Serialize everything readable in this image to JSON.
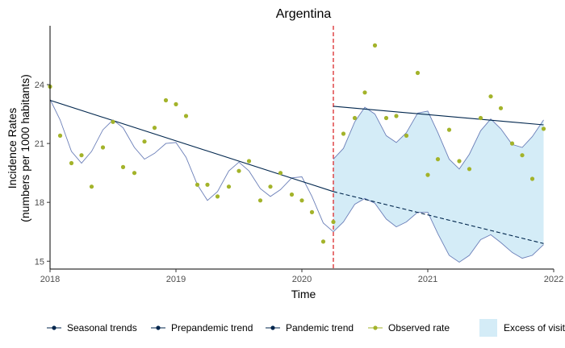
{
  "chart_data": {
    "type": "line",
    "title": "Argentina",
    "xlabel": "Time",
    "ylabel": [
      "Incidence Rates",
      "(numbers per 1000 habitants)"
    ],
    "xlim": [
      2018,
      2022
    ],
    "ylim": [
      14.6,
      27.0
    ],
    "x_ticks": [
      2018,
      2019,
      2020,
      2021,
      2022
    ],
    "x_tick_labels": [
      "2018",
      "2019",
      "2020",
      "2021",
      "2022"
    ],
    "y_ticks": [
      15,
      18,
      21,
      24
    ],
    "y_tick_labels": [
      "15",
      "18",
      "21",
      "24"
    ],
    "pandemic_start": 2020.25,
    "grid": false,
    "legend_position": "bottom",
    "colors": {
      "trend": "#00264d",
      "seasonal": "#6b7fb8",
      "observed": "#a3b32a",
      "excess_fill": "#d4ecf7",
      "vline": "#d7191c"
    },
    "prepandemic_trend": {
      "solid": {
        "x": [
          2018.0,
          2020.25
        ],
        "y": [
          23.2,
          18.55
        ]
      },
      "dashed": {
        "x": [
          2020.25,
          2021.92
        ],
        "y": [
          18.55,
          15.9
        ]
      }
    },
    "pandemic_trend": {
      "x": [
        2020.25,
        2021.92
      ],
      "y": [
        22.9,
        21.95
      ]
    },
    "seasonal_prepandemic": {
      "x": [
        2018.0,
        2018.08,
        2018.17,
        2018.25,
        2018.33,
        2018.42,
        2018.5,
        2018.58,
        2018.67,
        2018.75,
        2018.83,
        2018.92,
        2019.0,
        2019.08,
        2019.17,
        2019.25,
        2019.33,
        2019.42,
        2019.5,
        2019.58,
        2019.67,
        2019.75,
        2019.83,
        2019.92,
        2020.0,
        2020.08,
        2020.17,
        2020.25
      ],
      "y": [
        23.25,
        22.2,
        20.6,
        20.0,
        20.6,
        21.7,
        22.2,
        21.8,
        20.8,
        20.2,
        20.5,
        21.0,
        21.05,
        20.3,
        18.9,
        18.1,
        18.55,
        19.6,
        20.05,
        19.6,
        18.7,
        18.3,
        18.65,
        19.25,
        19.3,
        18.3,
        16.95,
        16.5
      ]
    },
    "seasonal_pandemic": {
      "x": [
        2020.25,
        2020.33,
        2020.42,
        2020.5,
        2020.58,
        2020.67,
        2020.75,
        2020.83,
        2020.92,
        2021.0,
        2021.08,
        2021.17,
        2021.25,
        2021.33,
        2021.42,
        2021.5,
        2021.58,
        2021.67,
        2021.75,
        2021.83,
        2021.92
      ],
      "y": [
        20.2,
        20.75,
        22.1,
        22.85,
        22.5,
        21.4,
        21.05,
        21.55,
        22.55,
        22.65,
        21.55,
        20.2,
        19.7,
        20.45,
        21.65,
        22.25,
        21.75,
        20.95,
        20.8,
        21.35,
        22.2
      ]
    },
    "seasonal_counterfactual": {
      "x": [
        2020.25,
        2020.33,
        2020.42,
        2020.5,
        2020.58,
        2020.67,
        2020.75,
        2020.83,
        2020.92,
        2021.0,
        2021.08,
        2021.17,
        2021.25,
        2021.33,
        2021.42,
        2021.5,
        2021.58,
        2021.67,
        2021.75,
        2021.83,
        2021.92
      ],
      "y": [
        16.5,
        17.0,
        17.9,
        18.2,
        17.95,
        17.15,
        16.75,
        17.0,
        17.5,
        17.5,
        16.4,
        15.3,
        14.95,
        15.3,
        16.1,
        16.35,
        15.95,
        15.45,
        15.15,
        15.3,
        15.85
      ]
    },
    "observed": {
      "x": [
        2018.0,
        2018.08,
        2018.17,
        2018.25,
        2018.33,
        2018.42,
        2018.5,
        2018.58,
        2018.67,
        2018.75,
        2018.83,
        2018.92,
        2019.0,
        2019.08,
        2019.17,
        2019.25,
        2019.33,
        2019.42,
        2019.5,
        2019.58,
        2019.67,
        2019.75,
        2019.83,
        2019.92,
        2020.0,
        2020.08,
        2020.17,
        2020.25,
        2020.33,
        2020.42,
        2020.5,
        2020.58,
        2020.67,
        2020.75,
        2020.83,
        2020.92,
        2021.0,
        2021.08,
        2021.17,
        2021.25,
        2021.33,
        2021.42,
        2021.5,
        2021.58,
        2021.67,
        2021.75,
        2021.83,
        2021.92
      ],
      "y": [
        23.9,
        21.4,
        20.0,
        20.4,
        18.8,
        20.8,
        22.1,
        19.8,
        19.5,
        21.1,
        21.8,
        23.2,
        23.0,
        22.4,
        18.9,
        18.9,
        18.3,
        18.8,
        19.6,
        20.1,
        18.1,
        18.8,
        19.5,
        18.4,
        18.1,
        17.5,
        16.0,
        17.0,
        21.5,
        22.3,
        23.6,
        26.0,
        22.3,
        22.4,
        21.4,
        24.6,
        19.4,
        20.2,
        21.7,
        20.1,
        19.7,
        22.3,
        23.4,
        22.8,
        21.0,
        20.4,
        19.2,
        21.75
      ]
    },
    "legend": [
      {
        "label": "Seasonal trends",
        "kind": "line-point",
        "color": "#00264d"
      },
      {
        "label": "Prepandemic trend",
        "kind": "line-point",
        "color": "#00264d"
      },
      {
        "label": "Pandemic trend",
        "kind": "line-point",
        "color": "#00264d"
      },
      {
        "label": "Observed rate",
        "kind": "line-point",
        "color": "#a3b32a"
      },
      {
        "label": "Excess of visits",
        "kind": "fill",
        "color": "#d4ecf7"
      }
    ]
  }
}
